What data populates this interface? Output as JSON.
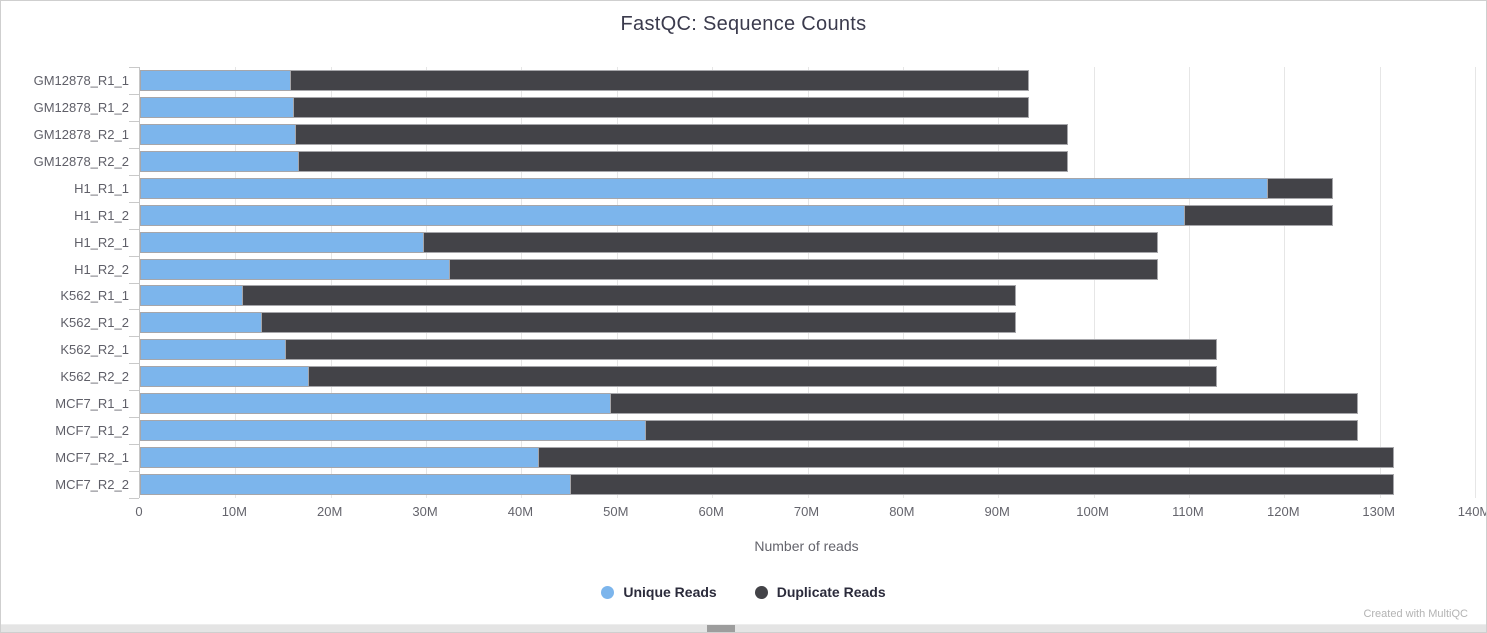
{
  "page": {
    "footer_credit": "Created with MultiQC"
  },
  "chart_data": {
    "type": "bar",
    "orientation": "horizontal",
    "stacked": true,
    "title": "FastQC: Sequence Counts",
    "xlabel": "Number of reads",
    "grid": true,
    "legend_position": "bottom",
    "value_unit": "millions of reads",
    "xmax_millions": 140,
    "x_ticks": [
      {
        "value_millions": 0,
        "label": "0"
      },
      {
        "value_millions": 10,
        "label": "10M"
      },
      {
        "value_millions": 20,
        "label": "20M"
      },
      {
        "value_millions": 30,
        "label": "30M"
      },
      {
        "value_millions": 40,
        "label": "40M"
      },
      {
        "value_millions": 50,
        "label": "50M"
      },
      {
        "value_millions": 60,
        "label": "60M"
      },
      {
        "value_millions": 70,
        "label": "70M"
      },
      {
        "value_millions": 80,
        "label": "80M"
      },
      {
        "value_millions": 90,
        "label": "90M"
      },
      {
        "value_millions": 100,
        "label": "100M"
      },
      {
        "value_millions": 110,
        "label": "110M"
      },
      {
        "value_millions": 120,
        "label": "120M"
      },
      {
        "value_millions": 130,
        "label": "130M"
      },
      {
        "value_millions": 140,
        "label": "140M"
      }
    ],
    "categories": [
      "GM12878_R1_1",
      "GM12878_R1_2",
      "GM12878_R2_1",
      "GM12878_R2_2",
      "H1_R1_1",
      "H1_R1_2",
      "H1_R2_1",
      "H1_R2_2",
      "K562_R1_1",
      "K562_R1_2",
      "K562_R2_1",
      "K562_R2_2",
      "MCF7_R1_1",
      "MCF7_R1_2",
      "MCF7_R2_1",
      "MCF7_R2_2"
    ],
    "series": [
      {
        "name": "Unique Reads",
        "color": "#7cb5ec",
        "values_millions": [
          15.8,
          16.2,
          16.4,
          16.7,
          118.3,
          109.6,
          29.8,
          32.5,
          10.8,
          12.8,
          15.3,
          17.7,
          49.4,
          53.1,
          41.8,
          45.2
        ]
      },
      {
        "name": "Duplicate Reads",
        "color": "#434348",
        "values_millions": [
          77.5,
          77.1,
          81.0,
          80.7,
          6.9,
          15.6,
          77.1,
          74.4,
          81.2,
          79.2,
          97.8,
          95.4,
          78.4,
          74.7,
          89.8,
          86.4
        ]
      }
    ],
    "totals_millions": [
      93.3,
      93.3,
      97.4,
      97.4,
      125.2,
      125.2,
      106.9,
      106.9,
      92.0,
      92.0,
      113.1,
      113.1,
      127.8,
      127.8,
      131.6,
      131.6
    ]
  }
}
